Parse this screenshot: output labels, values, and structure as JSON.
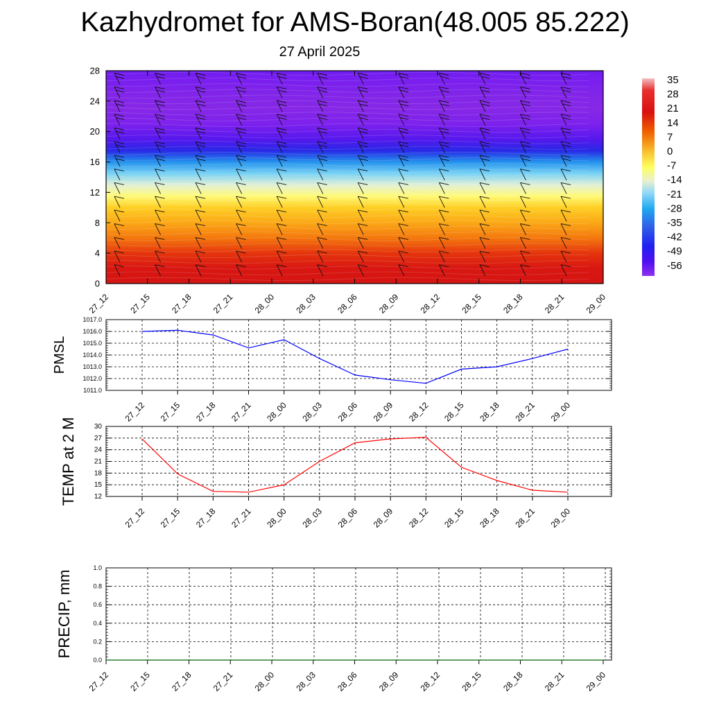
{
  "title": "Kazhydromet for AMS-Boran(48.005 85.222)",
  "subtitle": "27 April 2025",
  "time_labels": [
    "27_12",
    "27_15",
    "27_18",
    "27_21",
    "28_00",
    "28_03",
    "28_06",
    "28_09",
    "28_12",
    "28_15",
    "28_18",
    "28_21",
    "29_00"
  ],
  "colorbar": {
    "labels": [
      "35",
      "28",
      "21",
      "14",
      "7",
      "0",
      "-7",
      "-14",
      "-21",
      "-28",
      "-35",
      "-42",
      "-49",
      "-56"
    ]
  },
  "chart_data": [
    {
      "type": "heatmap",
      "name": "temperature cross-section",
      "x": [
        "27_12",
        "27_15",
        "27_18",
        "27_21",
        "28_00",
        "28_03",
        "28_06",
        "28_09",
        "28_12",
        "28_15",
        "28_18",
        "28_21",
        "29_00"
      ],
      "ylim": [
        0,
        28
      ],
      "yticks": [
        0,
        4,
        8,
        12,
        16,
        20,
        24,
        28
      ],
      "levels": [
        0,
        2,
        4,
        6,
        8,
        10,
        11.5,
        13,
        14.5,
        16,
        17.5,
        19,
        21,
        23,
        25,
        27,
        28
      ],
      "temperatures": [
        24,
        23,
        18,
        11,
        6,
        1,
        -7,
        -14,
        -21,
        -30,
        -42,
        -52,
        -57,
        -59,
        -58,
        -56,
        -55
      ],
      "colorscale_range": [
        -56,
        35
      ],
      "wind_barbs": true
    },
    {
      "type": "line",
      "ylabel": "PMSL",
      "x": [
        "27_12",
        "27_15",
        "27_18",
        "27_21",
        "28_00",
        "28_03",
        "28_06",
        "28_09",
        "28_12",
        "28_15",
        "28_18",
        "28_21",
        "29_00"
      ],
      "values": [
        1016.0,
        1016.1,
        1015.7,
        1014.6,
        1015.3,
        1013.7,
        1012.3,
        1011.9,
        1011.6,
        1012.8,
        1013.0,
        1013.7,
        1014.5
      ],
      "ylim": [
        1011.0,
        1017.0
      ],
      "yticks": [
        "1011.0",
        "1012.0",
        "1013.0",
        "1014.0",
        "1015.0",
        "1016.0",
        "1017.0"
      ],
      "color": "#0000ff",
      "grid": true
    },
    {
      "type": "line",
      "ylabel": "TEMP at 2 M",
      "x": [
        "27_12",
        "27_15",
        "27_18",
        "27_21",
        "28_00",
        "28_03",
        "28_06",
        "28_09",
        "28_12",
        "28_15",
        "28_18",
        "28_21",
        "29_00"
      ],
      "values": [
        26.8,
        17.8,
        13.3,
        13.1,
        15.0,
        21.0,
        25.8,
        26.8,
        27.2,
        19.5,
        16.1,
        13.6,
        13.1
      ],
      "ylim": [
        12,
        30
      ],
      "yticks": [
        "12",
        "15",
        "18",
        "21",
        "24",
        "27",
        "30"
      ],
      "color": "#ff0000",
      "grid": true
    },
    {
      "type": "line",
      "ylabel": "PRECIP, mm",
      "x": [
        "27_12",
        "27_15",
        "27_18",
        "27_21",
        "28_00",
        "28_03",
        "28_06",
        "28_09",
        "28_12",
        "28_15",
        "28_18",
        "28_21",
        "29_00"
      ],
      "values": [
        0,
        0,
        0,
        0,
        0,
        0,
        0,
        0,
        0,
        0,
        0,
        0,
        0
      ],
      "ylim": [
        0,
        1.0
      ],
      "yticks": [
        "0.0",
        "0.2",
        "0.4",
        "0.6",
        "0.8",
        "1.0"
      ],
      "color": "#006400",
      "grid": true
    }
  ]
}
